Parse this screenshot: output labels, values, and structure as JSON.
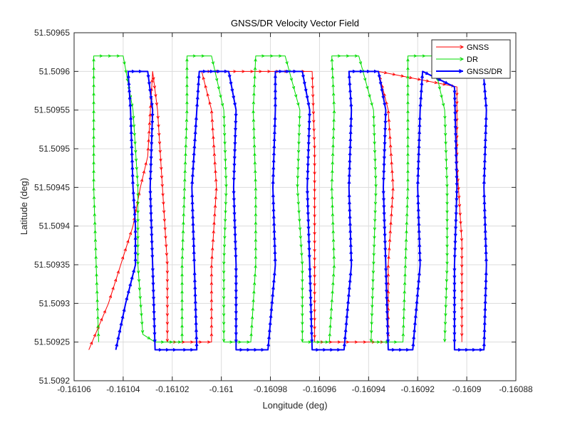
{
  "chart_data": {
    "type": "line",
    "title": "GNSS/DR Velocity Vector Field",
    "xlabel": "Longitude (deg)",
    "ylabel": "Latitude (deg)",
    "xlim": [
      -0.16106,
      -0.16088
    ],
    "ylim": [
      51.5092,
      51.50965
    ],
    "xticks": [
      -0.16106,
      -0.16104,
      -0.16102,
      -0.161,
      -0.16098,
      -0.16096,
      -0.16094,
      -0.16092,
      -0.1609,
      -0.16088
    ],
    "xtick_labels": [
      "-0.16106",
      "-0.16104",
      "-0.16102",
      "-0.161",
      "-0.16098",
      "-0.16096",
      "-0.16094",
      "-0.16092",
      "-0.1609",
      "-0.16088"
    ],
    "yticks": [
      51.5092,
      51.50925,
      51.5093,
      51.50935,
      51.5094,
      51.50945,
      51.5095,
      51.50955,
      51.5096,
      51.50965
    ],
    "ytick_labels": [
      "51.5092",
      "51.50925",
      "51.5093",
      "51.50935",
      "51.5094",
      "51.50945",
      "51.5095",
      "51.50955",
      "51.5096",
      "51.50965"
    ],
    "grid": true,
    "legend_position": "top-right",
    "series": [
      {
        "name": "GNSS",
        "color": "#ff0000",
        "points": [
          [
            -0.161054,
            51.50924
          ],
          [
            -0.161046,
            51.5093
          ],
          [
            -0.161041,
            51.50935
          ],
          [
            -0.161036,
            51.5094
          ],
          [
            -0.161033,
            51.50945
          ],
          [
            -0.16103,
            51.50949
          ],
          [
            -0.161028,
            51.5096
          ],
          [
            -0.161026,
            51.50955
          ],
          [
            -0.161024,
            51.50945
          ],
          [
            -0.161022,
            51.50935
          ],
          [
            -0.161022,
            51.50925
          ],
          [
            -0.161004,
            51.50925
          ],
          [
            -0.161004,
            51.50935
          ],
          [
            -0.161002,
            51.50945
          ],
          [
            -0.161004,
            51.50955
          ],
          [
            -0.161008,
            51.5096
          ],
          [
            -0.160963,
            51.5096
          ],
          [
            -0.160962,
            51.5095
          ],
          [
            -0.160962,
            51.5094
          ],
          [
            -0.160962,
            51.5093
          ],
          [
            -0.160962,
            51.50925
          ],
          [
            -0.160932,
            51.50925
          ],
          [
            -0.160932,
            51.50935
          ],
          [
            -0.16093,
            51.50945
          ],
          [
            -0.160932,
            51.50955
          ],
          [
            -0.160936,
            51.5096
          ],
          [
            -0.160904,
            51.50958
          ],
          [
            -0.160904,
            51.50948
          ],
          [
            -0.160902,
            51.50938
          ],
          [
            -0.160902,
            51.50928
          ],
          [
            -0.160902,
            51.50925
          ]
        ]
      },
      {
        "name": "DR",
        "color": "#00dd00",
        "points": [
          [
            -0.16105,
            51.50925
          ],
          [
            -0.161051,
            51.50935
          ],
          [
            -0.161052,
            51.50945
          ],
          [
            -0.161052,
            51.50955
          ],
          [
            -0.161052,
            51.50962
          ],
          [
            -0.16104,
            51.50962
          ],
          [
            -0.161036,
            51.50955
          ],
          [
            -0.161034,
            51.50945
          ],
          [
            -0.161034,
            51.50935
          ],
          [
            -0.161032,
            51.50926
          ],
          [
            -0.161027,
            51.50925
          ],
          [
            -0.161016,
            51.50925
          ],
          [
            -0.161016,
            51.50935
          ],
          [
            -0.161015,
            51.50945
          ],
          [
            -0.161014,
            51.50955
          ],
          [
            -0.161014,
            51.50962
          ],
          [
            -0.161004,
            51.50962
          ],
          [
            -0.160999,
            51.50955
          ],
          [
            -0.160998,
            51.50945
          ],
          [
            -0.160999,
            51.50935
          ],
          [
            -0.160999,
            51.50925
          ],
          [
            -0.160988,
            51.50925
          ],
          [
            -0.160986,
            51.50935
          ],
          [
            -0.160986,
            51.50945
          ],
          [
            -0.160987,
            51.50955
          ],
          [
            -0.160986,
            51.50962
          ],
          [
            -0.160974,
            51.50962
          ],
          [
            -0.160968,
            51.50955
          ],
          [
            -0.160969,
            51.50945
          ],
          [
            -0.160967,
            51.50935
          ],
          [
            -0.160967,
            51.50925
          ],
          [
            -0.160956,
            51.50925
          ],
          [
            -0.160954,
            51.50935
          ],
          [
            -0.160955,
            51.50945
          ],
          [
            -0.160954,
            51.50955
          ],
          [
            -0.160955,
            51.50962
          ],
          [
            -0.160944,
            51.50962
          ],
          [
            -0.160938,
            51.50955
          ],
          [
            -0.160937,
            51.50945
          ],
          [
            -0.160938,
            51.50935
          ],
          [
            -0.160939,
            51.50925
          ],
          [
            -0.160926,
            51.50925
          ],
          [
            -0.160925,
            51.50935
          ],
          [
            -0.160924,
            51.50945
          ],
          [
            -0.160924,
            51.50955
          ],
          [
            -0.160924,
            51.50962
          ],
          [
            -0.160914,
            51.50962
          ],
          [
            -0.160909,
            51.50955
          ],
          [
            -0.160908,
            51.50945
          ],
          [
            -0.160908,
            51.50935
          ],
          [
            -0.160909,
            51.50925
          ]
        ]
      },
      {
        "name": "GNSS/DR",
        "color": "#0000ff",
        "points": [
          [
            -0.161043,
            51.50924
          ],
          [
            -0.161039,
            51.5093
          ],
          [
            -0.161035,
            51.50935
          ],
          [
            -0.161035,
            51.5094
          ],
          [
            -0.161036,
            51.50945
          ],
          [
            -0.161037,
            51.50955
          ],
          [
            -0.161038,
            51.5096
          ],
          [
            -0.16103,
            51.5096
          ],
          [
            -0.161028,
            51.50955
          ],
          [
            -0.161029,
            51.50945
          ],
          [
            -0.161028,
            51.50935
          ],
          [
            -0.161027,
            51.50924
          ],
          [
            -0.161017,
            51.50924
          ],
          [
            -0.16101,
            51.50924
          ],
          [
            -0.161011,
            51.50935
          ],
          [
            -0.161012,
            51.50945
          ],
          [
            -0.16101,
            51.50955
          ],
          [
            -0.161009,
            51.5096
          ],
          [
            -0.160997,
            51.5096
          ],
          [
            -0.160994,
            51.50955
          ],
          [
            -0.160995,
            51.50945
          ],
          [
            -0.160994,
            51.50935
          ],
          [
            -0.160994,
            51.50924
          ],
          [
            -0.160981,
            51.50924
          ],
          [
            -0.160978,
            51.50935
          ],
          [
            -0.160979,
            51.50945
          ],
          [
            -0.160978,
            51.50955
          ],
          [
            -0.160978,
            51.5096
          ],
          [
            -0.160967,
            51.5096
          ],
          [
            -0.160964,
            51.50955
          ],
          [
            -0.160965,
            51.50945
          ],
          [
            -0.160964,
            51.50935
          ],
          [
            -0.160963,
            51.50924
          ],
          [
            -0.16095,
            51.50924
          ],
          [
            -0.160947,
            51.50935
          ],
          [
            -0.160948,
            51.50945
          ],
          [
            -0.160947,
            51.50955
          ],
          [
            -0.160948,
            51.5096
          ],
          [
            -0.160936,
            51.5096
          ],
          [
            -0.160933,
            51.50955
          ],
          [
            -0.160934,
            51.50945
          ],
          [
            -0.160933,
            51.50935
          ],
          [
            -0.160932,
            51.50924
          ],
          [
            -0.160922,
            51.50924
          ],
          [
            -0.160919,
            51.50935
          ],
          [
            -0.16092,
            51.50945
          ],
          [
            -0.160919,
            51.50955
          ],
          [
            -0.160918,
            51.5096
          ],
          [
            -0.160905,
            51.50958
          ],
          [
            -0.160904,
            51.50945
          ],
          [
            -0.160905,
            51.50935
          ],
          [
            -0.160905,
            51.50924
          ],
          [
            -0.160893,
            51.50924
          ],
          [
            -0.160892,
            51.50935
          ],
          [
            -0.160893,
            51.50945
          ],
          [
            -0.160892,
            51.50955
          ],
          [
            -0.160893,
            51.50959
          ]
        ]
      }
    ]
  }
}
